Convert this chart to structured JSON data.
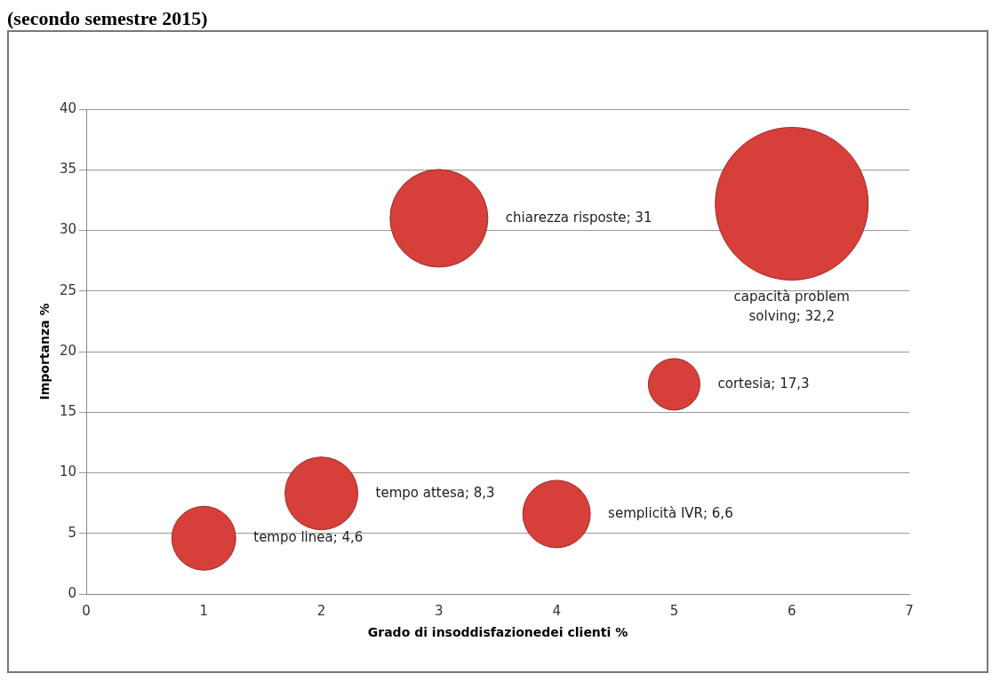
{
  "chart_data": {
    "type": "bubble",
    "title": "(secondo semestre 2015)",
    "xlabel": "Grado di insoddisfazionedei clienti %",
    "ylabel": "Importanza %",
    "x": [
      1,
      2,
      3,
      4,
      5,
      6
    ],
    "values": [
      4.6,
      8.3,
      31,
      6.6,
      17.3,
      32.2
    ],
    "sizes": [
      0.175,
      0.227,
      0.409,
      0.195,
      0.114,
      1
    ],
    "value_labels": [
      "tempo linea; 4,6",
      "tempo attesa; 8,3",
      "chiarezza risposte; 31",
      "semplicità IVR; 6,6",
      "cortesia; 17,3",
      "capacità problem solving; 32,2"
    ],
    "color": "#d63f3a",
    "xlim": [
      0,
      7
    ],
    "xticks": [
      0,
      1,
      2,
      3,
      4,
      5,
      6,
      7
    ],
    "ylim": [
      0,
      40
    ],
    "yticks": [
      0,
      5,
      10,
      15,
      20,
      25,
      30,
      35,
      40
    ],
    "grid": "y",
    "legend": false
  }
}
